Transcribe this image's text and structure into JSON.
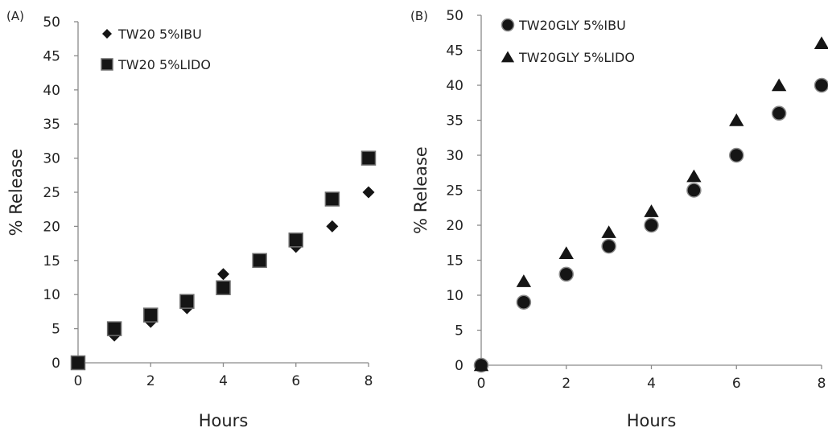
{
  "chart_data": [
    {
      "panel": "(A)",
      "type": "scatter",
      "xlabel": "Hours",
      "ylabel": "% Release",
      "xlim": [
        0,
        8
      ],
      "ylim": [
        0,
        50
      ],
      "xticks": [
        0,
        2,
        4,
        6,
        8
      ],
      "yticks": [
        0,
        5,
        10,
        15,
        20,
        25,
        30,
        35,
        40,
        45,
        50
      ],
      "grid": false,
      "legend_position": "top-left",
      "series": [
        {
          "name": "TW20 5%IBU",
          "marker": "diamond",
          "color": "#1a1a1a",
          "x": [
            0,
            1,
            2,
            3,
            4,
            5,
            6,
            7,
            8
          ],
          "y": [
            0,
            4,
            6,
            8,
            13,
            15,
            17,
            20,
            25
          ]
        },
        {
          "name": "TW20 5%LIDO",
          "marker": "square",
          "color": "#1a1a1a",
          "x": [
            0,
            1,
            2,
            3,
            4,
            5,
            6,
            7,
            8
          ],
          "y": [
            0,
            5,
            7,
            9,
            11,
            15,
            18,
            24,
            30
          ]
        }
      ]
    },
    {
      "panel": "(B)",
      "type": "scatter",
      "xlabel": "Hours",
      "ylabel": "% Release",
      "xlim": [
        0,
        8
      ],
      "ylim": [
        0,
        50
      ],
      "xticks": [
        0,
        2,
        4,
        6,
        8
      ],
      "yticks": [
        0,
        5,
        10,
        15,
        20,
        25,
        30,
        35,
        40,
        45,
        50
      ],
      "grid": false,
      "legend_position": "top-left",
      "series": [
        {
          "name": "TW20GLY 5%IBU",
          "marker": "circle",
          "color": "#1a1a1a",
          "x": [
            0,
            1,
            2,
            3,
            4,
            5,
            6,
            7,
            8
          ],
          "y": [
            0,
            9,
            13,
            17,
            20,
            25,
            30,
            36,
            40
          ]
        },
        {
          "name": "TW20GLY 5%LIDO",
          "marker": "triangle",
          "color": "#1a1a1a",
          "x": [
            0,
            1,
            2,
            3,
            4,
            5,
            6,
            7,
            8
          ],
          "y": [
            0,
            12,
            16,
            19,
            22,
            27,
            35,
            40,
            46
          ]
        }
      ]
    }
  ]
}
